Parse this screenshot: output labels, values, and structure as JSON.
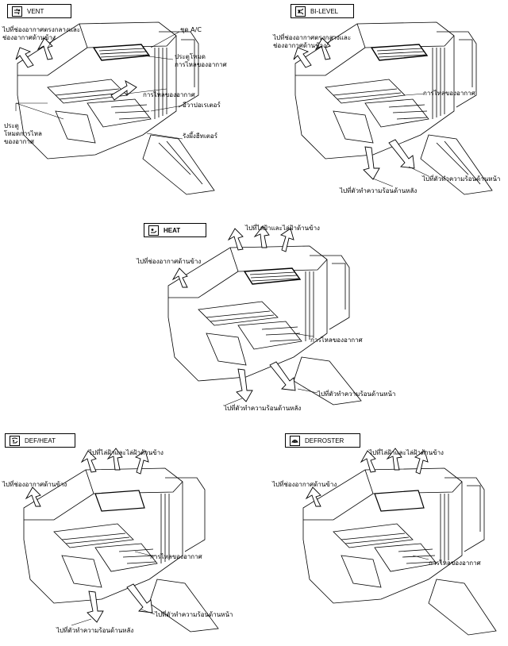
{
  "panels": {
    "vent": {
      "mode": "VENT",
      "icon": "vent-icon",
      "labels": {
        "center_side": "ไปที่ช่องอากาศตรงกลางและ",
        "center_side_2": "ช่องอากาศด้านข้าง",
        "ac_unit": "ชุด A/C",
        "mode_door": "ประตูโหมด",
        "mode_door_2": "การไหลของอากาศ",
        "air_flow": "การไหลของอากาศ",
        "evaporator": "อีวาปอเรเตอร์",
        "air_door": "ประตู",
        "air_door_2": "โหมดการไหล",
        "air_door_3": "ของอากาศ",
        "heater_core": "รังผึ้งฮีทเตอร์"
      }
    },
    "bilevel": {
      "mode": "BI-LEVEL",
      "icon": "bilevel-icon",
      "labels": {
        "center_side": "ไปที่ช่องอากาศตรงกลางและ",
        "center_side_2": "ช่องอากาศด้านข้าง",
        "air_flow": "การไหลของอากาศ",
        "front_heater": "ไปที่ตัวทำความร้อนด้านหน้า",
        "rear_heater": "ไปที่ตัวทำความร้อนด้านหลัง"
      }
    },
    "heat": {
      "mode": "HEAT",
      "icon": "heat-icon",
      "labels": {
        "windshield": "ไปที่ไล่ฝ้าและไล่ฝ้าด้านข้าง",
        "side_vent": "ไปที่ช่องอากาศด้านข้าง",
        "air_flow": "การไหลของอากาศ",
        "front_heater": "ไปที่ตัวทำความร้อนด้านหน้า",
        "rear_heater": "ไปที่ตัวทำความร้อนด้านหลัง"
      }
    },
    "defheat": {
      "mode": "DEF/HEAT",
      "icon": "defheat-icon",
      "labels": {
        "windshield": "ไปที่ไล่ฝ้าและไล่ฝ้าด้านข้าง",
        "side_vent": "ไปที่ช่องอากาศด้านข้าง",
        "air_flow": "การไหลของอากาศ",
        "front_heater": "ไปที่ตัวทำความร้อนด้านหน้า",
        "rear_heater": "ไปที่ตัวทำความร้อนด้านหลัง"
      }
    },
    "defroster": {
      "mode": "DEFROSTER",
      "icon": "defroster-icon",
      "labels": {
        "windshield": "ไปที่ไล่ฝ้าและไล่ฝ้าด้านข้าง",
        "side_vent": "ไปที่ช่องอากาศด้านข้าง",
        "air_flow": "การไหลของอากาศ"
      }
    }
  }
}
